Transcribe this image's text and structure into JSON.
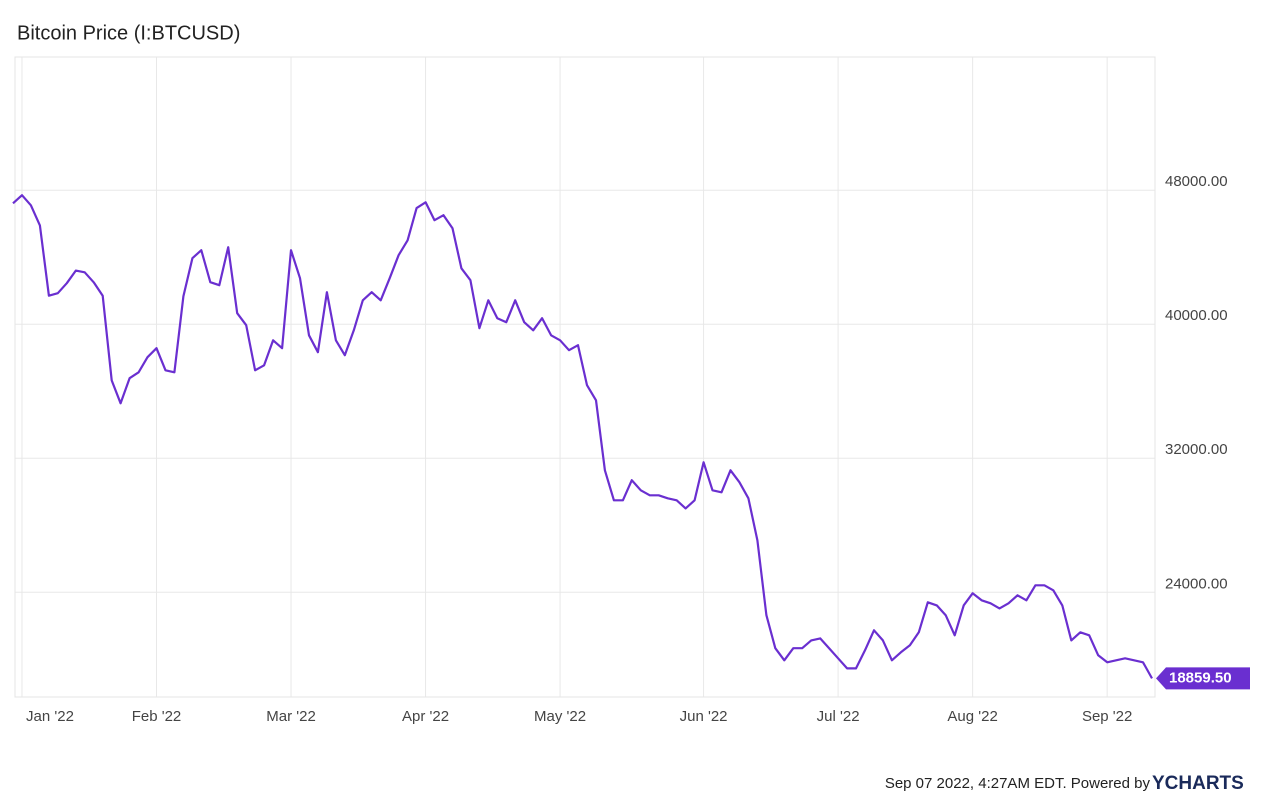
{
  "chart_data": {
    "type": "line",
    "title": "Bitcoin Price (I:BTCUSD)",
    "categories": [
      null,
      "Jan '22",
      null,
      null,
      null,
      null,
      null,
      null,
      null,
      null,
      null,
      null,
      null,
      null,
      null,
      null,
      "Feb '22",
      null,
      null,
      null,
      null,
      null,
      null,
      null,
      null,
      null,
      null,
      null,
      null,
      null,
      null,
      "Mar '22",
      null,
      null,
      null,
      null,
      null,
      null,
      null,
      null,
      null,
      null,
      null,
      null,
      null,
      null,
      "Apr '22",
      null,
      null,
      null,
      null,
      null,
      null,
      null,
      null,
      null,
      null,
      null,
      null,
      null,
      null,
      "May '22",
      null,
      null,
      null,
      null,
      null,
      null,
      null,
      null,
      null,
      null,
      null,
      null,
      null,
      null,
      null,
      "Jun '22",
      null,
      null,
      null,
      null,
      null,
      null,
      null,
      null,
      null,
      null,
      null,
      null,
      null,
      null,
      "Jul '22",
      null,
      null,
      null,
      null,
      null,
      null,
      null,
      null,
      null,
      null,
      null,
      null,
      null,
      null,
      "Aug '22",
      null,
      null,
      null,
      null,
      null,
      null,
      null,
      null,
      null,
      null,
      null,
      null,
      null,
      null,
      "Sep '22",
      null,
      null,
      null,
      null,
      null
    ],
    "series": [
      {
        "name": "Bitcoin Price",
        "color": "#6a2fd0",
        "values": [
          47220,
          47700,
          47100,
          45900,
          41700,
          41850,
          42450,
          43200,
          43100,
          42500,
          41700,
          36650,
          35280,
          36780,
          37130,
          38030,
          38570,
          37250,
          37130,
          41670,
          43940,
          44420,
          42510,
          42330,
          44600,
          40660,
          39940,
          37250,
          37550,
          39040,
          38570,
          44420,
          42750,
          39340,
          38330,
          41910,
          39040,
          38150,
          39640,
          41430,
          41910,
          41430,
          42750,
          44120,
          45010,
          46930,
          47280,
          46210,
          46510,
          45730,
          43340,
          42630,
          39760,
          41430,
          40360,
          40120,
          41430,
          40120,
          39640,
          40360,
          39340,
          39040,
          38450,
          38750,
          36360,
          35460,
          31280,
          29490,
          29490,
          30690,
          30090,
          29790,
          29790,
          29610,
          29490,
          29010,
          29490,
          31760,
          30090,
          29970,
          31280,
          30570,
          29610,
          27100,
          22630,
          20660,
          19940,
          20660,
          20660,
          21130,
          21250,
          20660,
          20060,
          19460,
          19460,
          20540,
          21730,
          21130,
          19940,
          20420,
          20840,
          21610,
          23400,
          23220,
          22630,
          21430,
          23220,
          23940,
          23520,
          23340,
          23040,
          23340,
          23820,
          23520,
          24420,
          24420,
          24120,
          23220,
          21130,
          21610,
          21430,
          20240,
          19820,
          19940,
          20060,
          19940,
          19820,
          18859.5
        ]
      }
    ],
    "last_label": {
      "value": 18859.5,
      "label": "18859.50"
    },
    "ylim": [
      17750,
      55950
    ],
    "yticks": [
      {
        "value": 24000,
        "label": "24000.00"
      },
      {
        "value": 32000,
        "label": "32000.00"
      },
      {
        "value": 40000,
        "label": "40000.00"
      },
      {
        "value": 48000,
        "label": "48000.00"
      }
    ],
    "grid": true
  },
  "footer": {
    "text": "Sep 07 2022, 4:27AM EDT. Powered by",
    "brand": "YCHARTS"
  }
}
